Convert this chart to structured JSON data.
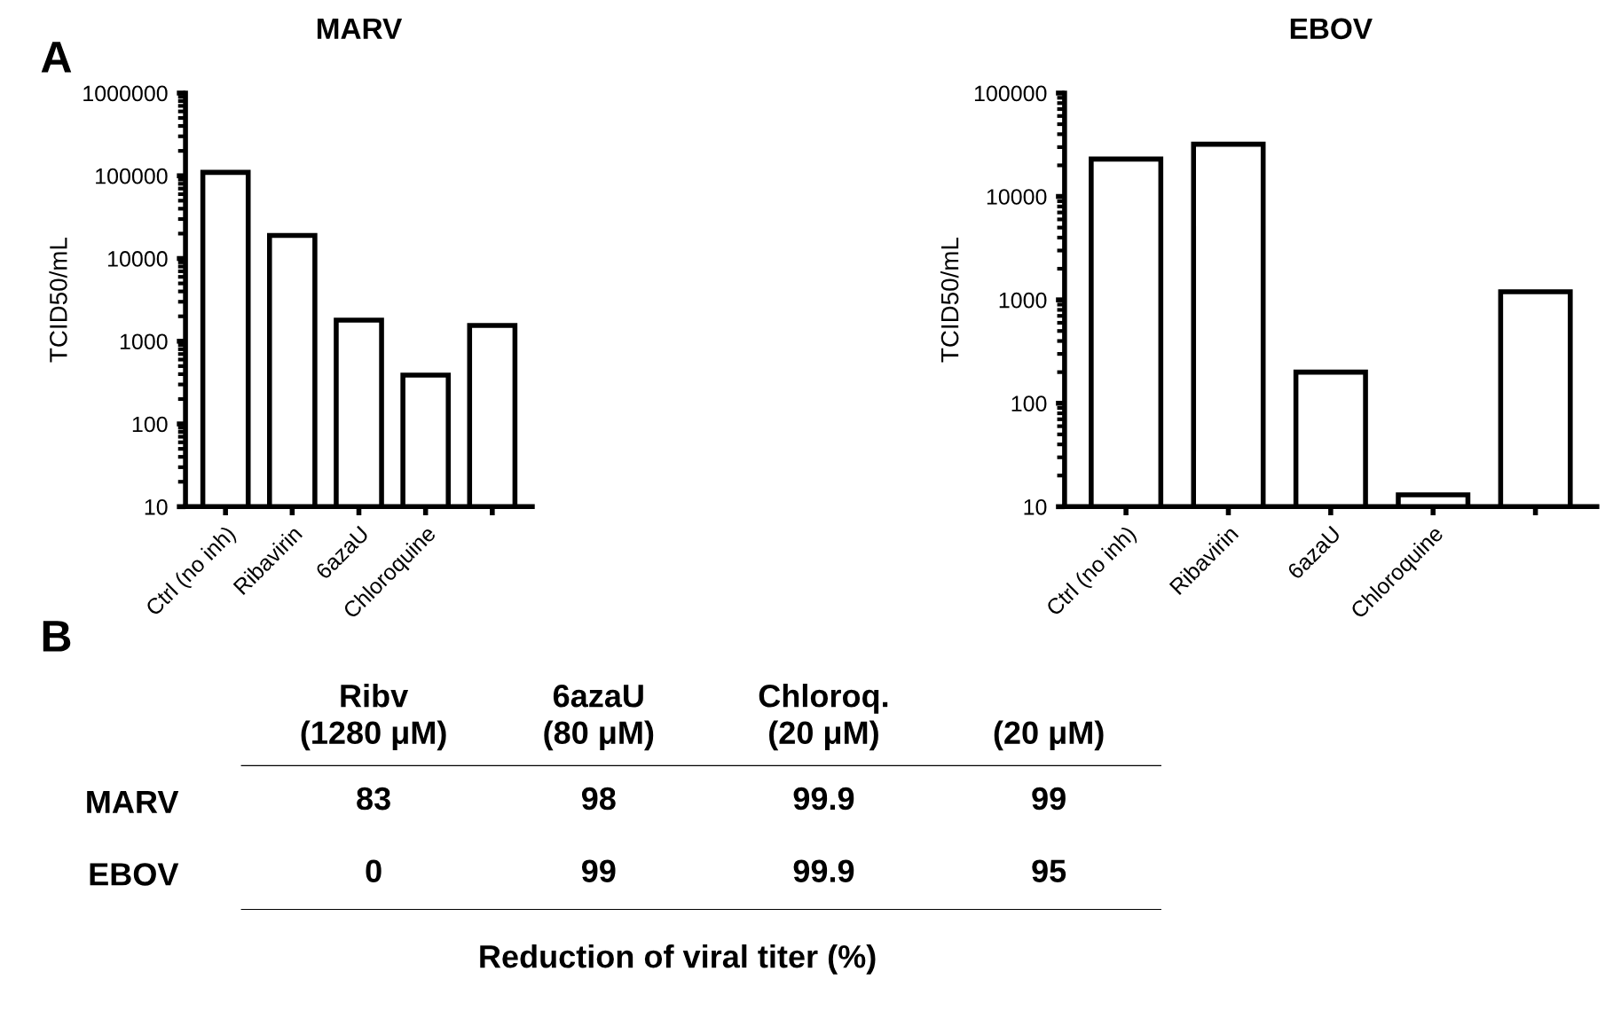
{
  "chart_data": [
    {
      "type": "bar",
      "title": "MARV",
      "ylabel": "TCID50/mL",
      "categories": [
        "Ctrl (no inh)",
        "Ribavirin",
        "6azaU",
        "Chloroquine",
        null
      ],
      "values": [
        110000,
        19000,
        1800,
        390,
        1550
      ],
      "color": "#ffffff",
      "log": true,
      "ylim": [
        10,
        1000000
      ],
      "yticks": [
        10,
        100,
        1000,
        10000,
        100000,
        1000000
      ],
      "grid": false,
      "annotations": [
        "A"
      ]
    },
    {
      "type": "bar",
      "title": "EBOV",
      "ylabel": "TCID50/mL",
      "categories": [
        "Ctrl (no inh)",
        "Ribavirin",
        "6azaU",
        "Chloroquine",
        null
      ],
      "values": [
        23000,
        32000,
        200,
        13,
        1200
      ],
      "color": "#ffffff",
      "log": true,
      "ylim": [
        10,
        100000
      ],
      "yticks": [
        10,
        100,
        1000,
        10000,
        100000
      ],
      "grid": false
    },
    {
      "type": "heatmap",
      "data_labels": true,
      "color": "#ffffff",
      "xlabel": "Reduction of viral titer (%)",
      "categories": [
        "Ribv\n(1280 μM)",
        "6azaU\n(80 μM)",
        "Chloroq.\n(20 μM)",
        "(20 μM)"
      ],
      "y_categories": [
        "MARV",
        "EBOV"
      ],
      "cells": [
        [
          83,
          98,
          99.9,
          99
        ],
        [
          0,
          99,
          99.9,
          95
        ]
      ],
      "annotations": [
        "B"
      ]
    }
  ]
}
